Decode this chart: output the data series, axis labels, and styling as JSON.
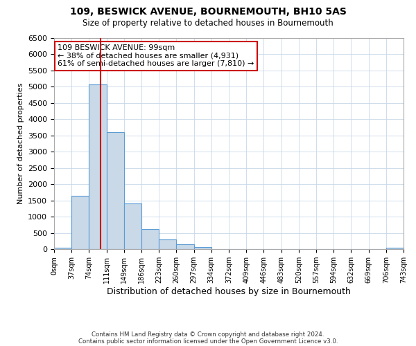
{
  "title": "109, BESWICK AVENUE, BOURNEMOUTH, BH10 5AS",
  "subtitle": "Size of property relative to detached houses in Bournemouth",
  "xlabel": "Distribution of detached houses by size in Bournemouth",
  "ylabel": "Number of detached properties",
  "bin_edges": [
    0,
    37,
    74,
    111,
    148,
    185,
    222,
    259,
    296,
    333,
    370,
    407,
    444,
    481,
    518,
    555,
    592,
    629,
    666,
    703,
    740
  ],
  "bin_labels": [
    "0sqm",
    "37sqm",
    "74sqm",
    "111sqm",
    "149sqm",
    "186sqm",
    "223sqm",
    "260sqm",
    "297sqm",
    "334sqm",
    "372sqm",
    "409sqm",
    "446sqm",
    "483sqm",
    "520sqm",
    "557sqm",
    "594sqm",
    "632sqm",
    "669sqm",
    "706sqm",
    "743sqm"
  ],
  "counts": [
    50,
    1650,
    5080,
    3600,
    1400,
    620,
    300,
    145,
    60,
    0,
    0,
    0,
    0,
    0,
    0,
    0,
    0,
    0,
    0,
    50
  ],
  "bar_color": "#c9d9e8",
  "bar_edge_color": "#5b9bd5",
  "property_size": 99,
  "vline_color": "#cc0000",
  "annotation_line1": "109 BESWICK AVENUE: 99sqm",
  "annotation_line2": "← 38% of detached houses are smaller (4,931)",
  "annotation_line3": "61% of semi-detached houses are larger (7,810) →",
  "annotation_box_color": "#ffffff",
  "annotation_box_edge_color": "#cc0000",
  "ylim": [
    0,
    6500
  ],
  "yticks": [
    0,
    500,
    1000,
    1500,
    2000,
    2500,
    3000,
    3500,
    4000,
    4500,
    5000,
    5500,
    6000,
    6500
  ],
  "footer1": "Contains HM Land Registry data © Crown copyright and database right 2024.",
  "footer2": "Contains public sector information licensed under the Open Government Licence v3.0.",
  "bg_color": "#ffffff",
  "grid_color": "#c8d8e8"
}
